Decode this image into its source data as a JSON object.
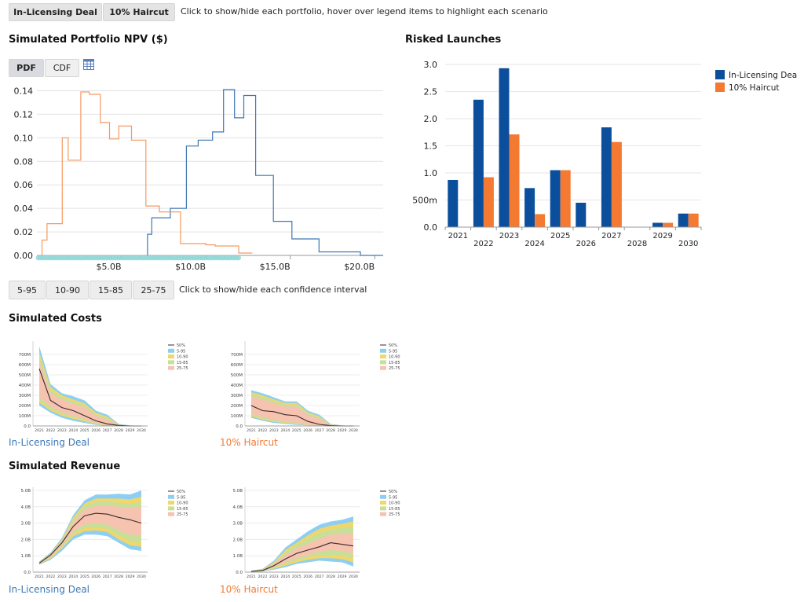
{
  "toolbar": {
    "portfolio_buttons": [
      "In-Licensing Deal",
      "10% Haircut"
    ],
    "hint": "Click to show/hide each portfolio, hover over legend items to highlight each scenario"
  },
  "npv": {
    "title": "Simulated Portfolio NPV ($)",
    "tabs": [
      "PDF",
      "CDF"
    ],
    "table_icon": "table-icon",
    "ci_buttons": [
      "5-95",
      "10-90",
      "15-85",
      "25-75"
    ],
    "ci_hint": "Click to show/hide each confidence interval"
  },
  "costs": {
    "title": "Simulated Costs",
    "captions": [
      "In-Licensing Deal",
      "10% Haircut"
    ]
  },
  "revenue": {
    "title": "Simulated Revenue",
    "captions": [
      "In-Licensing Deal",
      "10% Haircut"
    ]
  },
  "launches": {
    "title": "Risked Launches"
  },
  "colors": {
    "blue": "#0b4f9c",
    "orange": "#f47a32",
    "npv_blue": "#3d78b4",
    "npv_orange": "#f49a62",
    "rug": "#8ed6d6",
    "ci_5_95": "#8dcff2",
    "ci_10_90": "#f1d66b",
    "ci_15_85": "#c8df98",
    "ci_25_75": "#f5c3b0"
  },
  "chart_data": [
    {
      "id": "npv",
      "type": "line",
      "title": "",
      "xlabel": "",
      "ylabel": "",
      "xlim": [
        0,
        20.5
      ],
      "ylim": [
        0,
        0.145
      ],
      "xticks": [
        5,
        10,
        15,
        20
      ],
      "xtick_labels": [
        "$5.0B",
        "$10.0B",
        "$15.0B",
        "$20.0B"
      ],
      "yticks": [
        0,
        0.02,
        0.04,
        0.06,
        0.08,
        0.1,
        0.12,
        0.14
      ],
      "ytick_labels": [
        "0.00",
        "0.02",
        "0.04",
        "0.06",
        "0.08",
        "0.10",
        "0.12",
        "0.14"
      ],
      "grid": true,
      "series": [
        {
          "step": true,
          "color_key": "npv_blue",
          "x": [
            6.55,
            6.55,
            6.8,
            6.8,
            7.9,
            7.9,
            8.85,
            8.85,
            9.55,
            9.55,
            10.4,
            10.4,
            11.05,
            11.05,
            11.7,
            11.7,
            12.25,
            12.25,
            12.95,
            12.95,
            14.0,
            14.0,
            15.1,
            15.1,
            16.7,
            16.7,
            19.15,
            19.15,
            20.5
          ],
          "y": [
            0,
            0.018,
            0.018,
            0.032,
            0.032,
            0.04,
            0.04,
            0.093,
            0.093,
            0.098,
            0.098,
            0.105,
            0.105,
            0.141,
            0.141,
            0.117,
            0.117,
            0.136,
            0.136,
            0.068,
            0.068,
            0.029,
            0.029,
            0.014,
            0.014,
            0.003,
            0.003,
            0.0,
            0.0
          ]
        },
        {
          "step": true,
          "color_key": "npv_orange",
          "x": [
            0.3,
            0.3,
            0.6,
            0.6,
            1.5,
            1.5,
            1.85,
            1.85,
            2.6,
            2.6,
            3.1,
            3.1,
            3.75,
            3.75,
            4.3,
            4.3,
            4.85,
            4.85,
            5.6,
            5.6,
            6.45,
            6.45,
            7.25,
            7.25,
            8.5,
            8.5,
            10.0,
            10.0,
            10.55,
            10.55,
            11.95,
            11.95,
            12.75
          ],
          "y": [
            0,
            0.013,
            0.013,
            0.027,
            0.027,
            0.1,
            0.1,
            0.081,
            0.081,
            0.139,
            0.139,
            0.137,
            0.137,
            0.113,
            0.113,
            0.099,
            0.099,
            0.11,
            0.11,
            0.098,
            0.098,
            0.042,
            0.042,
            0.037,
            0.037,
            0.01,
            0.01,
            0.009,
            0.009,
            0.008,
            0.008,
            0.002,
            0.002
          ]
        }
      ]
    },
    {
      "id": "launches",
      "type": "bar",
      "title": "",
      "categories": [
        "2021",
        "2022",
        "2023",
        "2024",
        "2025",
        "2026",
        "2027",
        "2028",
        "2029",
        "2030"
      ],
      "ylim": [
        0,
        3.0
      ],
      "yticks": [
        0,
        0.5,
        1.0,
        1.5,
        2.0,
        2.5,
        3.0
      ],
      "ytick_labels": [
        "0.0",
        "500m",
        "1.0",
        "1.5",
        "2.0",
        "2.5",
        "3.0"
      ],
      "legend": "top-right",
      "series": [
        {
          "name": "In-Licensing Deal",
          "color_key": "blue",
          "values": [
            0.87,
            2.35,
            2.93,
            0.72,
            1.05,
            0.45,
            1.84,
            0.0,
            0.08,
            0.25
          ]
        },
        {
          "name": "10% Haircut",
          "color_key": "orange",
          "values": [
            0.0,
            0.92,
            1.71,
            0.24,
            1.05,
            0.0,
            1.57,
            0.0,
            0.08,
            0.25
          ]
        }
      ]
    },
    {
      "id": "costs_deal",
      "type": "area",
      "categories": [
        "2021",
        "2022",
        "2023",
        "2024",
        "2025",
        "2026",
        "2027",
        "2028",
        "2029",
        "2030"
      ],
      "ylim": [
        0,
        800
      ],
      "yticks": [
        0,
        100,
        200,
        300,
        400,
        500,
        600,
        700
      ],
      "ytick_labels": [
        "0.0",
        "100M",
        "200M",
        "300M",
        "400M",
        "500M",
        "600M",
        "700M"
      ],
      "legend": [
        "50%",
        "5-95",
        "10-90",
        "15-85",
        "25-75"
      ],
      "median": [
        560,
        250,
        180,
        150,
        100,
        50,
        20,
        5,
        0,
        0
      ],
      "band_5_95": {
        "low": [
          200,
          130,
          80,
          50,
          30,
          10,
          0,
          0,
          0,
          0
        ],
        "high": [
          780,
          410,
          320,
          290,
          250,
          150,
          110,
          20,
          5,
          0
        ]
      },
      "band_10_90": {
        "low": [
          230,
          150,
          100,
          70,
          45,
          15,
          3,
          0,
          0,
          0
        ],
        "high": [
          720,
          380,
          300,
          260,
          220,
          130,
          90,
          15,
          3,
          0
        ]
      },
      "band_15_85": {
        "low": [
          250,
          170,
          115,
          85,
          55,
          20,
          5,
          0,
          0,
          0
        ],
        "high": [
          680,
          350,
          280,
          240,
          200,
          115,
          75,
          12,
          2,
          0
        ]
      },
      "band_25_75": {
        "low": [
          280,
          190,
          130,
          100,
          65,
          25,
          8,
          0,
          0,
          0
        ],
        "high": [
          640,
          320,
          260,
          220,
          180,
          100,
          60,
          10,
          1,
          0
        ]
      }
    },
    {
      "id": "costs_haircut",
      "type": "area",
      "categories": [
        "2021",
        "2022",
        "2023",
        "2024",
        "2025",
        "2026",
        "2027",
        "2028",
        "2029",
        "2030"
      ],
      "ylim": [
        0,
        800
      ],
      "yticks": [
        0,
        100,
        200,
        300,
        400,
        500,
        600,
        700
      ],
      "ytick_labels": [
        "0.0",
        "100M",
        "200M",
        "300M",
        "400M",
        "500M",
        "600M",
        "700M"
      ],
      "legend": [
        "50%",
        "5-95",
        "10-90",
        "15-85",
        "25-75"
      ],
      "median": [
        200,
        150,
        140,
        110,
        100,
        45,
        15,
        3,
        0,
        0
      ],
      "band_5_95": {
        "low": [
          80,
          50,
          30,
          20,
          10,
          5,
          0,
          0,
          0,
          0
        ],
        "high": [
          350,
          320,
          280,
          240,
          240,
          150,
          110,
          20,
          5,
          0
        ]
      },
      "band_10_90": {
        "low": [
          95,
          60,
          40,
          28,
          16,
          7,
          1,
          0,
          0,
          0
        ],
        "high": [
          330,
          300,
          260,
          225,
          225,
          135,
          95,
          16,
          3,
          0
        ]
      },
      "band_15_85": {
        "low": [
          105,
          70,
          48,
          34,
          20,
          9,
          2,
          0,
          0,
          0
        ],
        "high": [
          310,
          285,
          245,
          210,
          210,
          125,
          85,
          13,
          2,
          0
        ]
      },
      "band_25_75": {
        "low": [
          120,
          85,
          60,
          45,
          30,
          12,
          3,
          0,
          0,
          0
        ],
        "high": [
          290,
          260,
          225,
          190,
          190,
          110,
          70,
          10,
          1,
          0
        ]
      }
    },
    {
      "id": "revenue_deal",
      "type": "area",
      "categories": [
        "2021",
        "2022",
        "2023",
        "2024",
        "2025",
        "2026",
        "2027",
        "2028",
        "2029",
        "2030"
      ],
      "ylim": [
        0,
        5.0
      ],
      "yticks": [
        0,
        1,
        2,
        3,
        4,
        5
      ],
      "ytick_labels": [
        "0.0",
        "1.0B",
        "2.0B",
        "3.0B",
        "4.0B",
        "5.0B"
      ],
      "legend": [
        "50%",
        "5-95",
        "10-90",
        "15-85",
        "25-75"
      ],
      "median": [
        0.55,
        1.05,
        1.8,
        2.8,
        3.45,
        3.6,
        3.55,
        3.35,
        3.2,
        3.0
      ],
      "band_5_95": {
        "low": [
          0.45,
          0.75,
          1.3,
          2.0,
          2.3,
          2.3,
          2.2,
          1.8,
          1.4,
          1.3
        ],
        "high": [
          0.65,
          1.2,
          2.1,
          3.5,
          4.4,
          4.75,
          4.75,
          4.8,
          4.75,
          5.0
        ]
      },
      "band_10_90": {
        "low": [
          0.48,
          0.82,
          1.45,
          2.2,
          2.5,
          2.55,
          2.45,
          2.0,
          1.65,
          1.55
        ],
        "high": [
          0.62,
          1.15,
          2.0,
          3.35,
          4.2,
          4.5,
          4.5,
          4.5,
          4.45,
          4.6
        ]
      },
      "band_15_85": {
        "low": [
          0.5,
          0.88,
          1.55,
          2.35,
          2.7,
          2.75,
          2.65,
          2.25,
          1.9,
          1.8
        ],
        "high": [
          0.6,
          1.12,
          1.95,
          3.2,
          4.05,
          4.3,
          4.3,
          4.25,
          4.2,
          4.3
        ]
      },
      "band_25_75": {
        "low": [
          0.52,
          0.93,
          1.65,
          2.5,
          2.9,
          3.0,
          2.9,
          2.55,
          2.3,
          2.2
        ],
        "high": [
          0.58,
          1.1,
          1.9,
          3.05,
          3.85,
          4.05,
          4.05,
          4.0,
          3.95,
          4.0
        ]
      }
    },
    {
      "id": "revenue_haircut",
      "type": "area",
      "categories": [
        "2021",
        "2022",
        "2023",
        "2024",
        "2025",
        "2026",
        "2027",
        "2028",
        "2029",
        "2030"
      ],
      "ylim": [
        0,
        5.0
      ],
      "yticks": [
        0,
        1,
        2,
        3,
        4,
        5
      ],
      "ytick_labels": [
        "0.0",
        "1.0B",
        "2.0B",
        "3.0B",
        "4.0B",
        "5.0B"
      ],
      "legend": [
        "50%",
        "5-95",
        "10-90",
        "15-85",
        "25-75"
      ],
      "median": [
        0.05,
        0.1,
        0.4,
        0.8,
        1.15,
        1.35,
        1.55,
        1.8,
        1.7,
        1.6
      ],
      "band_5_95": {
        "low": [
          0.02,
          0.05,
          0.15,
          0.3,
          0.5,
          0.6,
          0.7,
          0.65,
          0.6,
          0.35
        ],
        "high": [
          0.08,
          0.2,
          0.7,
          1.5,
          2.0,
          2.5,
          2.9,
          3.1,
          3.2,
          3.4
        ]
      },
      "band_10_90": {
        "low": [
          0.03,
          0.06,
          0.2,
          0.4,
          0.6,
          0.75,
          0.85,
          0.85,
          0.8,
          0.6
        ],
        "high": [
          0.07,
          0.18,
          0.6,
          1.35,
          1.8,
          2.25,
          2.65,
          2.85,
          2.95,
          3.1
        ]
      },
      "band_15_85": {
        "low": [
          0.035,
          0.07,
          0.25,
          0.5,
          0.72,
          0.9,
          1.05,
          1.05,
          1.0,
          0.85
        ],
        "high": [
          0.065,
          0.16,
          0.55,
          1.2,
          1.65,
          2.05,
          2.4,
          2.6,
          2.7,
          2.8
        ]
      },
      "band_25_75": {
        "low": [
          0.04,
          0.08,
          0.3,
          0.6,
          0.85,
          1.05,
          1.25,
          1.35,
          1.3,
          1.15
        ],
        "high": [
          0.06,
          0.14,
          0.5,
          1.05,
          1.45,
          1.75,
          2.05,
          2.3,
          2.35,
          2.4
        ]
      }
    }
  ]
}
